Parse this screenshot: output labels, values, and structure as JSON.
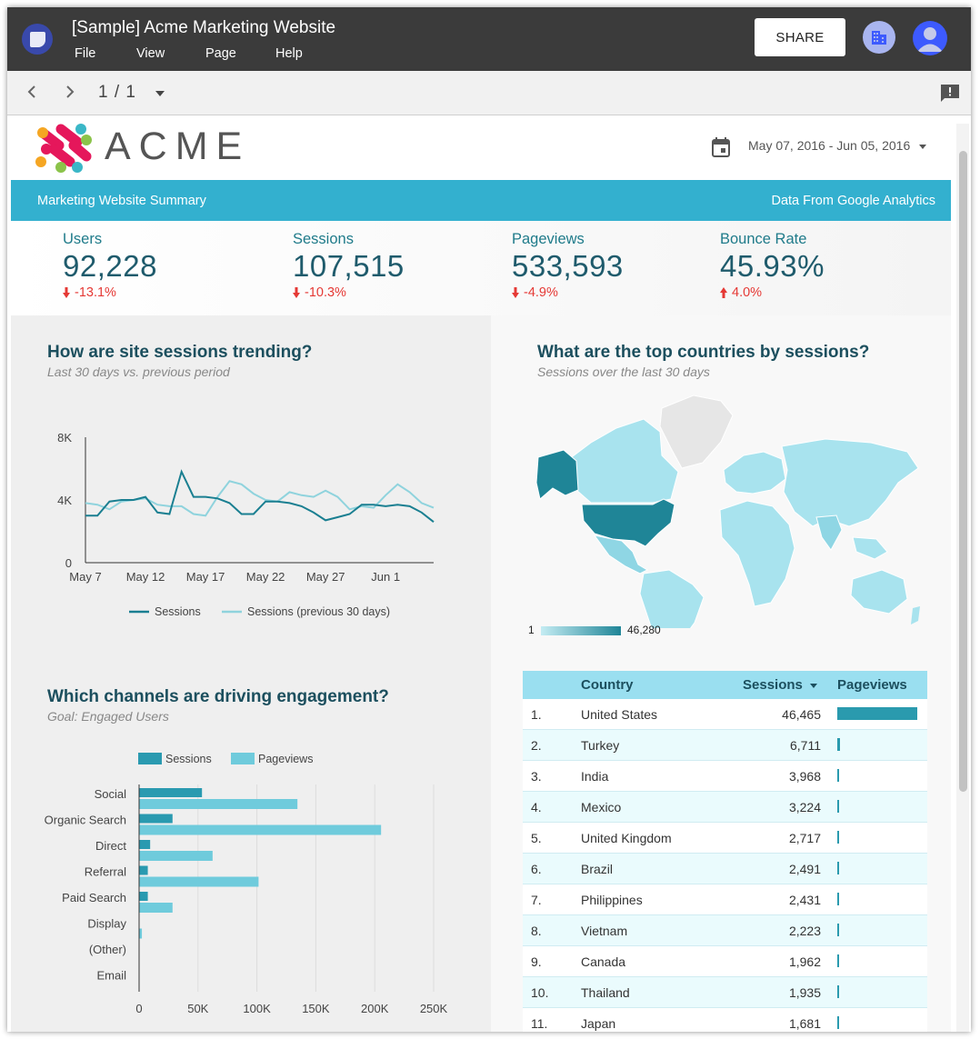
{
  "app": {
    "title": "[Sample] Acme Marketing Website",
    "menu": [
      "File",
      "View",
      "Page",
      "Help"
    ],
    "share_label": "SHARE"
  },
  "nav": {
    "page_indicator": "1 / 1"
  },
  "report": {
    "logo_text": "ACME",
    "date_range": "May 07, 2016 - Jun 05, 2016",
    "banner_left": "Marketing Website Summary",
    "banner_right": "Data From Google Analytics",
    "colors": {
      "accent": "#33b0cf",
      "dark_teal": "#1f5b6c",
      "negative": "#e53935"
    },
    "kpis": [
      {
        "label": "Users",
        "value": "92,228",
        "change": "-13.1%",
        "direction": "down"
      },
      {
        "label": "Sessions",
        "value": "107,515",
        "change": "-10.3%",
        "direction": "down"
      },
      {
        "label": "Pageviews",
        "value": "533,593",
        "change": "-4.9%",
        "direction": "down"
      },
      {
        "label": "Bounce Rate",
        "value": "45.93%",
        "change": "4.0%",
        "direction": "up"
      }
    ],
    "trend": {
      "title": "How are site sessions trending?",
      "subtitle": "Last 30 days vs. previous period"
    },
    "channels": {
      "title": "Which channels are driving engagement?",
      "subtitle": "Goal: Engaged Users"
    },
    "countries": {
      "title": "What are the top countries by sessions?",
      "subtitle": "Sessions over the last 30 days",
      "legend_min": "1",
      "legend_max": "46,280"
    },
    "table": {
      "headers": {
        "country": "Country",
        "sessions": "Sessions",
        "pageviews": "Pageviews"
      },
      "rows": [
        {
          "rank": "1.",
          "country": "United States",
          "sessions": "46,465",
          "pv_fraction": 1.0
        },
        {
          "rank": "2.",
          "country": "Turkey",
          "sessions": "6,711",
          "pv_fraction": 0.03
        },
        {
          "rank": "3.",
          "country": "India",
          "sessions": "3,968",
          "pv_fraction": 0.02
        },
        {
          "rank": "4.",
          "country": "Mexico",
          "sessions": "3,224",
          "pv_fraction": 0.025
        },
        {
          "rank": "5.",
          "country": "United Kingdom",
          "sessions": "2,717",
          "pv_fraction": 0.02
        },
        {
          "rank": "6.",
          "country": "Brazil",
          "sessions": "2,491",
          "pv_fraction": 0.01
        },
        {
          "rank": "7.",
          "country": "Philippines",
          "sessions": "2,431",
          "pv_fraction": 0.01
        },
        {
          "rank": "8.",
          "country": "Vietnam",
          "sessions": "2,223",
          "pv_fraction": 0.01
        },
        {
          "rank": "9.",
          "country": "Canada",
          "sessions": "1,962",
          "pv_fraction": 0.025
        },
        {
          "rank": "10.",
          "country": "Thailand",
          "sessions": "1,935",
          "pv_fraction": 0.01
        },
        {
          "rank": "11.",
          "country": "Japan",
          "sessions": "1,681",
          "pv_fraction": 0.01
        }
      ]
    }
  },
  "chart_data": [
    {
      "type": "line",
      "x": [
        "May 7",
        "May 8",
        "May 9",
        "May 10",
        "May 11",
        "May 12",
        "May 13",
        "May 14",
        "May 15",
        "May 16",
        "May 17",
        "May 18",
        "May 19",
        "May 20",
        "May 21",
        "May 22",
        "May 23",
        "May 24",
        "May 25",
        "May 26",
        "May 27",
        "May 28",
        "May 29",
        "May 30",
        "May 31",
        "Jun 1",
        "Jun 2",
        "Jun 3",
        "Jun 4",
        "Jun 5"
      ],
      "x_tick_labels": [
        "May 7",
        "May 12",
        "May 17",
        "May 22",
        "May 27",
        "Jun 1"
      ],
      "y_tick_labels": [
        "8K",
        "4K",
        "0"
      ],
      "ylim": [
        0,
        8000
      ],
      "series": [
        {
          "name": "Sessions",
          "color": "#1a7f91",
          "values": [
            3000,
            3000,
            3900,
            4000,
            4000,
            4200,
            3200,
            3100,
            5800,
            4200,
            4200,
            4100,
            3800,
            3100,
            3100,
            3900,
            3900,
            3800,
            3600,
            3200,
            2700,
            2900,
            3100,
            3700,
            3700,
            3600,
            3700,
            3600,
            3200,
            2600
          ]
        },
        {
          "name": "Sessions (previous 30 days)",
          "color": "#8fd3dd",
          "values": [
            3800,
            3700,
            3400,
            3900,
            4000,
            4100,
            3700,
            3600,
            3600,
            3100,
            3000,
            4200,
            5200,
            5000,
            4400,
            4000,
            3900,
            4500,
            4300,
            4200,
            4600,
            4200,
            3400,
            3600,
            3500,
            4300,
            5000,
            4500,
            3800,
            3500
          ]
        }
      ]
    },
    {
      "type": "bar",
      "orientation": "horizontal",
      "categories": [
        "Social",
        "Organic Search",
        "Direct",
        "Referral",
        "Paid Search",
        "Display",
        "(Other)",
        "Email"
      ],
      "x_tick_labels": [
        "0",
        "50K",
        "100K",
        "150K",
        "200K",
        "250K"
      ],
      "xlim": [
        0,
        250000
      ],
      "series": [
        {
          "name": "Sessions",
          "color": "#2a9ab0",
          "values": [
            53000,
            28000,
            9000,
            7000,
            7000,
            0,
            0,
            0
          ]
        },
        {
          "name": "Pageviews",
          "color": "#6fcbdc",
          "values": [
            134000,
            205000,
            62000,
            101000,
            28000,
            2000,
            0,
            0
          ]
        }
      ]
    }
  ]
}
